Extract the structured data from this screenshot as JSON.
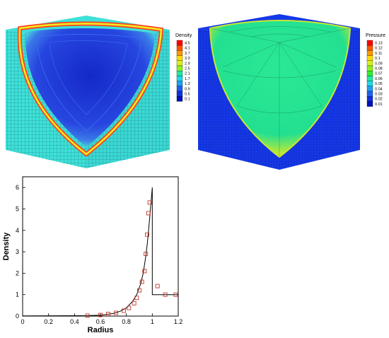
{
  "chart_data": [
    {
      "type": "heatmap",
      "colorbar": {
        "title": "Density",
        "ticks": [
          "4.5",
          "4.1",
          "3.7",
          "3.3",
          "2.9",
          "2.5",
          "2.1",
          "1.7",
          "1.3",
          "0.9",
          "0.5",
          "0.1"
        ]
      },
      "colors": {
        "background": "#3ee0d8",
        "interior": "#1f35d8",
        "shock": "#ff4020"
      }
    },
    {
      "type": "heatmap",
      "colorbar": {
        "title": "Pressure",
        "ticks": [
          "0.13",
          "0.12",
          "0.11",
          "0.1",
          "0.09",
          "0.08",
          "0.07",
          "0.06",
          "0.05",
          "0.04",
          "0.03",
          "0.02",
          "0.01"
        ]
      },
      "colors": {
        "background": "#1538e8",
        "interior": "#25e890",
        "shock": "#c8e830"
      }
    },
    {
      "type": "line",
      "xlabel": "Radius",
      "ylabel": "Density",
      "xlim": [
        0,
        1.2
      ],
      "ylim": [
        0,
        6.5
      ],
      "xticks": [
        "0",
        "0.2",
        "0.4",
        "0.6",
        "0.8",
        "1",
        "1.2"
      ],
      "yticks": [
        "0",
        "1",
        "2",
        "3",
        "4",
        "5",
        "6"
      ],
      "series": [
        {
          "style": "line",
          "x": [
            0,
            0.5,
            0.6,
            0.7,
            0.75,
            0.8,
            0.85,
            0.88,
            0.91,
            0.93,
            0.95,
            0.96,
            0.97,
            0.98,
            0.99,
            1.0,
            1.0,
            1.0,
            1.2
          ],
          "y": [
            0.01,
            0.02,
            0.04,
            0.12,
            0.22,
            0.38,
            0.7,
            1.0,
            1.5,
            2.0,
            2.8,
            3.3,
            3.9,
            4.6,
            5.3,
            6.0,
            1.0,
            1.0,
            1.0
          ]
        },
        {
          "style": "markers",
          "marker": "square",
          "color": "#c0392b",
          "x": [
            0.5,
            0.6,
            0.66,
            0.72,
            0.78,
            0.82,
            0.86,
            0.88,
            0.9,
            0.92,
            0.94,
            0.95,
            0.96,
            0.97,
            0.98,
            1.04,
            1.1,
            1.18
          ],
          "y": [
            0.02,
            0.05,
            0.1,
            0.15,
            0.25,
            0.38,
            0.6,
            0.85,
            1.2,
            1.6,
            2.1,
            2.9,
            3.8,
            4.8,
            5.3,
            1.4,
            1.0,
            1.0
          ]
        }
      ]
    }
  ]
}
